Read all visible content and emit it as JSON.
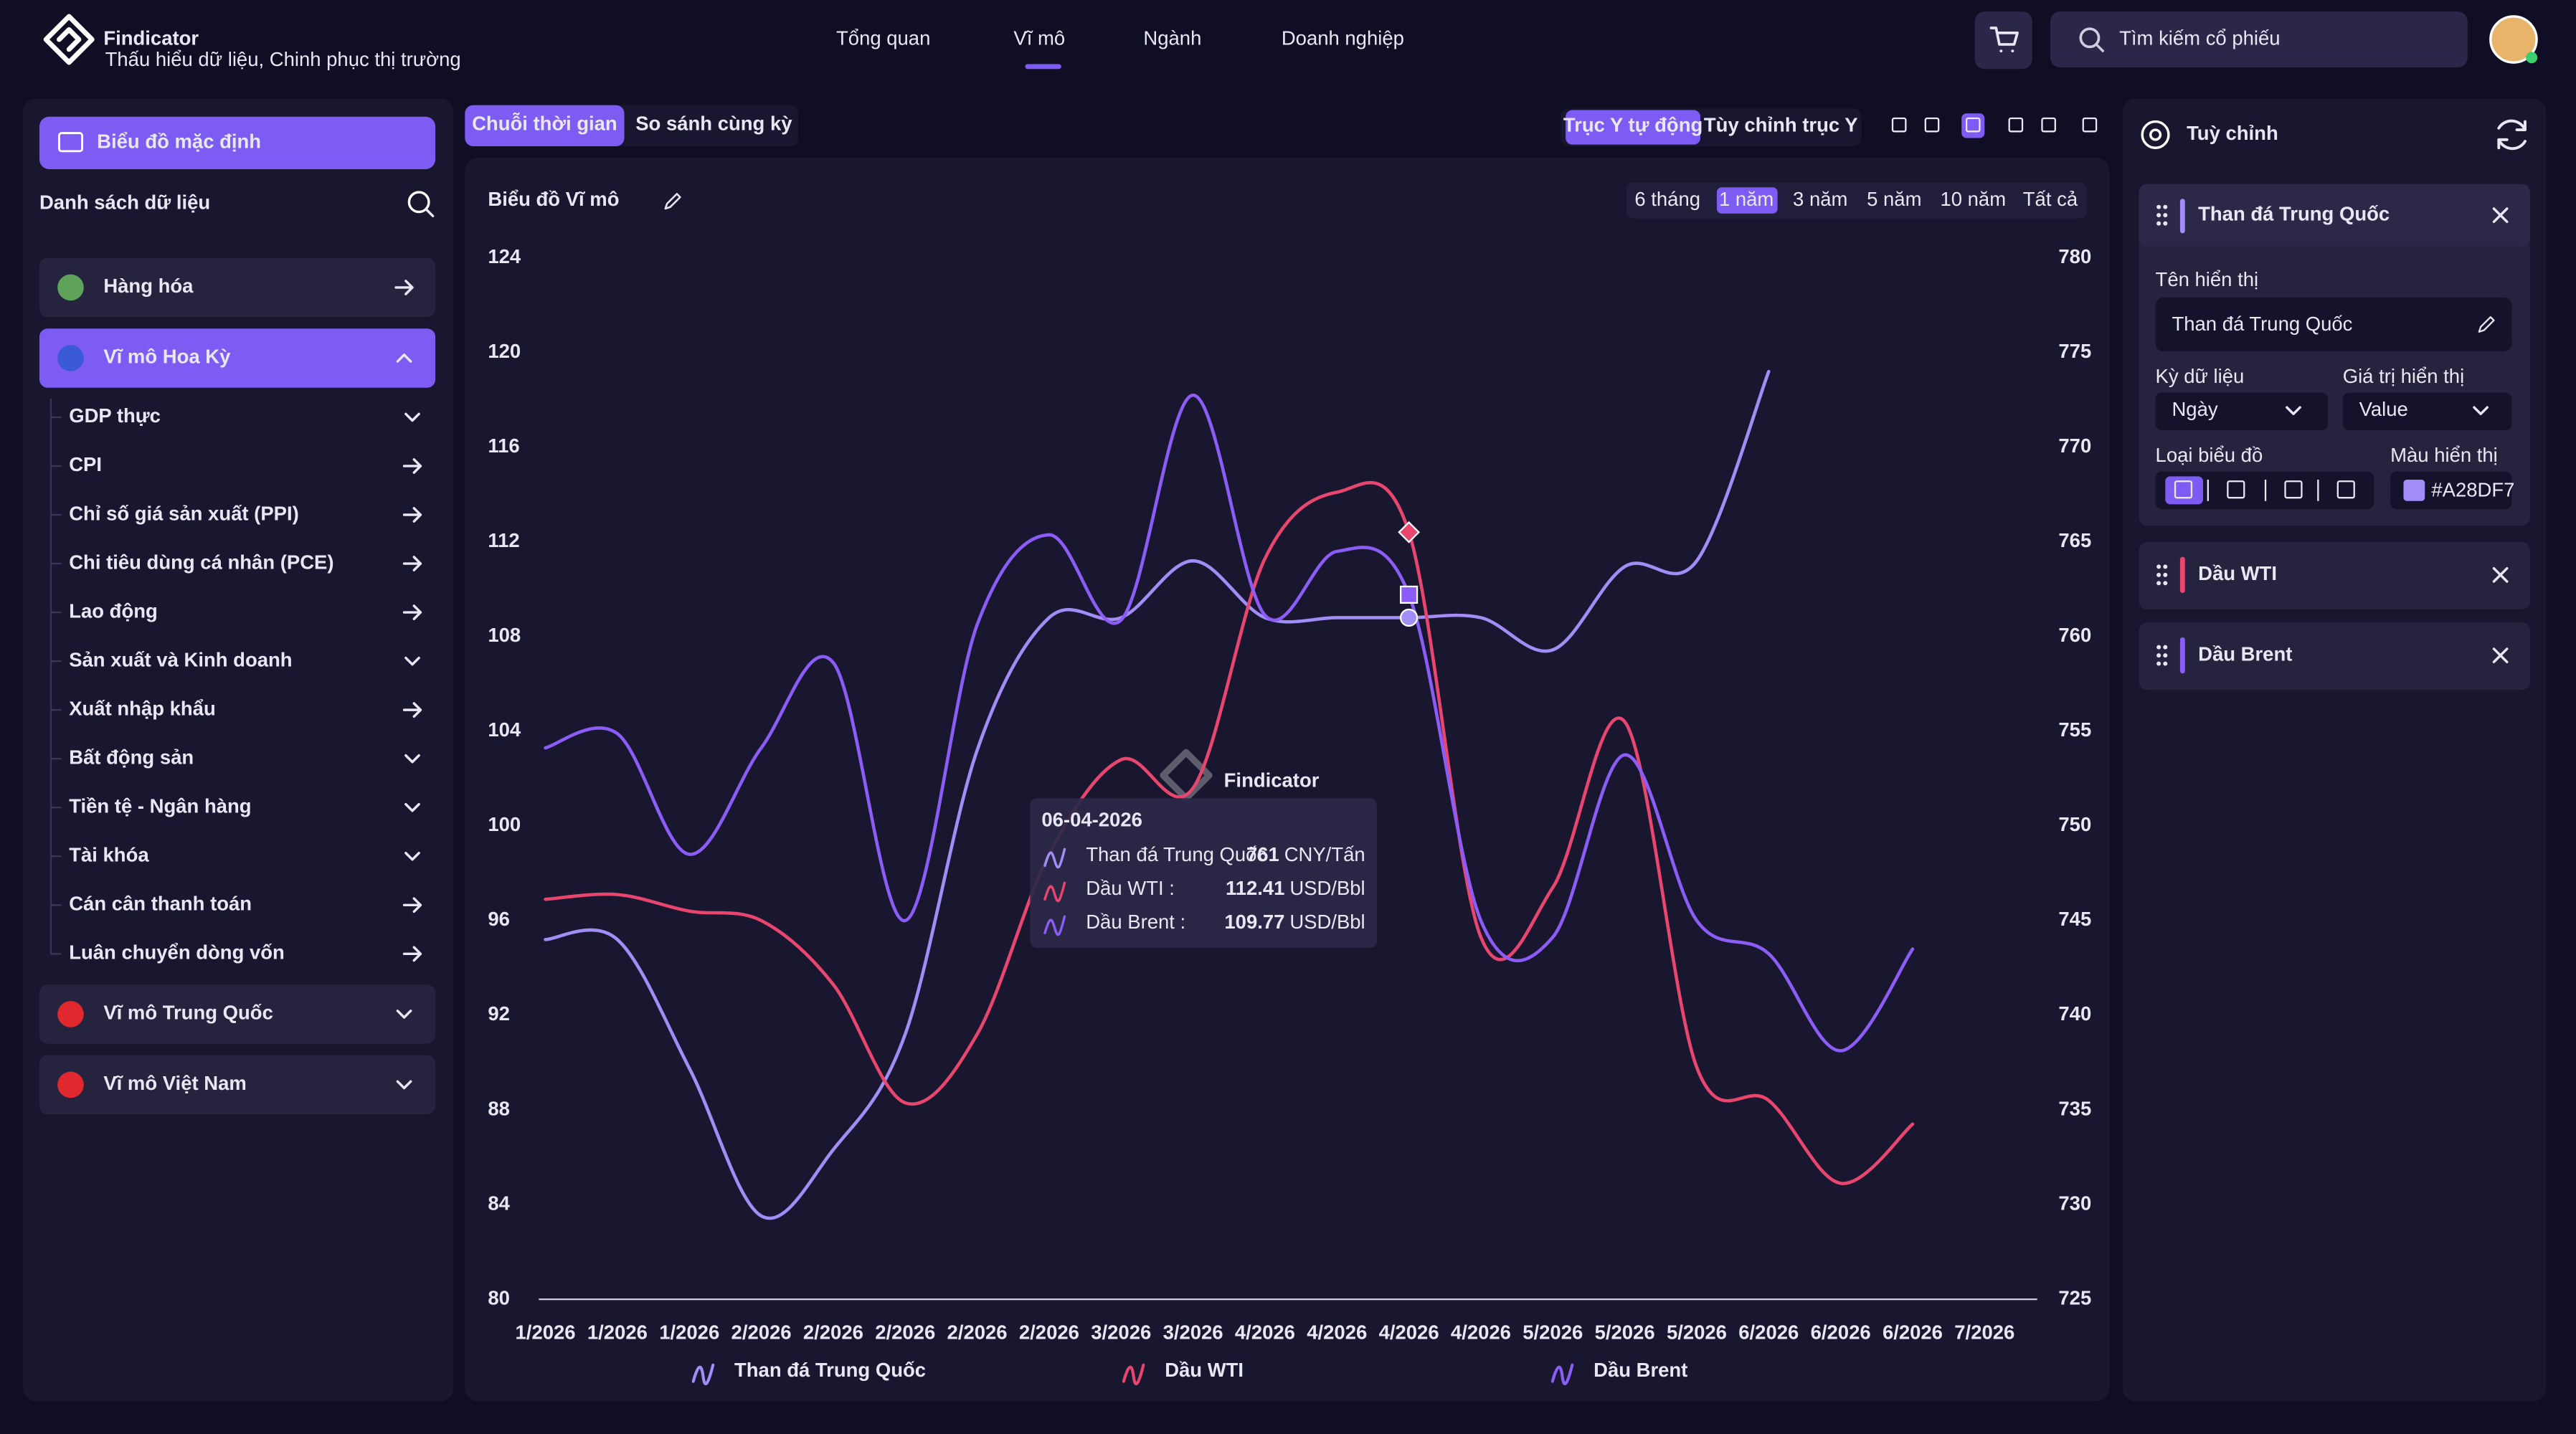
{
  "header": {
    "brand": "Findicator",
    "tagline": "Thấu hiểu dữ liệu, Chinh phục thị trường",
    "nav": [
      "Tổng quan",
      "Vĩ mô",
      "Ngành",
      "Doanh nghiệp"
    ],
    "active_nav": 1,
    "search_placeholder": "Tìm kiếm cổ phiếu"
  },
  "sidebar": {
    "default_button": "Biểu đồ mặc định",
    "list_title": "Danh sách dữ liệu",
    "groups": [
      {
        "label": "Hàng hóa",
        "expanded": false,
        "items": []
      },
      {
        "label": "Vĩ mô Hoa Kỳ",
        "expanded": true,
        "items": [
          {
            "label": "GDP thực",
            "icon": "chevron"
          },
          {
            "label": "CPI",
            "icon": "arrow"
          },
          {
            "label": "Chỉ số giá sản xuất (PPI)",
            "icon": "arrow"
          },
          {
            "label": "Chi tiêu dùng cá nhân (PCE)",
            "icon": "arrow"
          },
          {
            "label": "Lao động",
            "icon": "arrow"
          },
          {
            "label": "Sản xuất và Kinh doanh",
            "icon": "chevron"
          },
          {
            "label": "Xuất nhập khẩu",
            "icon": "arrow"
          },
          {
            "label": "Bất động sản",
            "icon": "chevron"
          },
          {
            "label": "Tiền tệ - Ngân hàng",
            "icon": "chevron"
          },
          {
            "label": "Tài khóa",
            "icon": "chevron"
          },
          {
            "label": "Cán cân thanh toán",
            "icon": "arrow"
          },
          {
            "label": "Luân chuyển dòng vốn",
            "icon": "arrow"
          }
        ]
      },
      {
        "label": "Vĩ mô Trung Quốc",
        "expanded": false,
        "items": []
      },
      {
        "label": "Vĩ mô Việt Nam",
        "expanded": false,
        "items": []
      }
    ]
  },
  "toolbar": {
    "view_tabs": [
      "Chuỗi thời gian",
      "So sánh cùng kỳ"
    ],
    "active_view": 0,
    "y_axis_modes": [
      "Trục Y tự động",
      "Tùy chỉnh trục Y"
    ],
    "active_y_axis_mode": 0
  },
  "chart_data": {
    "type": "line",
    "title": "Biểu đồ Vĩ mô",
    "ranges": [
      "6 tháng",
      "1 năm",
      "3 năm",
      "5 năm",
      "10 năm",
      "Tất cả"
    ],
    "active_range": 1,
    "categories": [
      "1/2026",
      "1/2026",
      "1/2026",
      "2/2026",
      "2/2026",
      "2/2026",
      "2/2026",
      "2/2026",
      "3/2026",
      "3/2026",
      "4/2026",
      "4/2026",
      "4/2026",
      "4/2026",
      "5/2026",
      "5/2026",
      "5/2026",
      "6/2026",
      "6/2026",
      "6/2026",
      "7/2026"
    ],
    "series": [
      {
        "name": "Than đá Trung Quốc",
        "color": "#A28DF7",
        "axis": "y2",
        "values": [
          744,
          744,
          737.2,
          729.4,
          732.9,
          739,
          754,
          761,
          761,
          764,
          761,
          761,
          761,
          761,
          759.3,
          763.7,
          764,
          774,
          null,
          null,
          null
        ]
      },
      {
        "name": "Dầu WTI",
        "color": "#E8456F",
        "values": [
          96.9,
          97.1,
          96.4,
          96,
          93.3,
          88.3,
          91.2,
          98.8,
          102.8,
          101.6,
          111.3,
          114.1,
          112.41,
          95.3,
          97.4,
          104.4,
          89.8,
          88.4,
          84.9,
          87.4,
          null
        ]
      },
      {
        "name": "Dầu Brent",
        "color": "#8B5CF6",
        "values": [
          103.3,
          103.9,
          98.8,
          103.3,
          106.9,
          96,
          108.5,
          112.3,
          108.7,
          118.2,
          108.9,
          111.6,
          109.77,
          96,
          95.3,
          103,
          96,
          94.6,
          90.5,
          94.8,
          null
        ]
      }
    ],
    "ylim": [
      80,
      124
    ],
    "yticks": [
      80,
      84,
      88,
      92,
      96,
      100,
      104,
      108,
      112,
      116,
      120,
      124
    ],
    "y2lim": [
      725,
      780
    ],
    "y2ticks": [
      725,
      730,
      735,
      740,
      745,
      750,
      755,
      760,
      765,
      770,
      775,
      780
    ],
    "grid": false,
    "legend": "bottom",
    "watermark": "Findicator",
    "tooltip": {
      "date": "06-04-2026",
      "rows": [
        {
          "name": "Than đá Trung Quốc :",
          "value": "761",
          "unit": "CNY/Tấn"
        },
        {
          "name": "Dầu WTI :",
          "value": "112.41",
          "unit": "USD/Bbl"
        },
        {
          "name": "Dầu Brent :",
          "value": "109.77",
          "unit": "USD/Bbl"
        }
      ]
    }
  },
  "settings_panel": {
    "title": "Tuỳ chỉnh",
    "display_name_label": "Tên hiển thị",
    "period_label": "Kỳ dữ liệu",
    "period_value": "Ngày",
    "display_value_label": "Giá trị hiển thị",
    "display_value": "Value",
    "chart_type_label": "Loại biểu đồ",
    "color_label": "Màu hiển thị"
  }
}
